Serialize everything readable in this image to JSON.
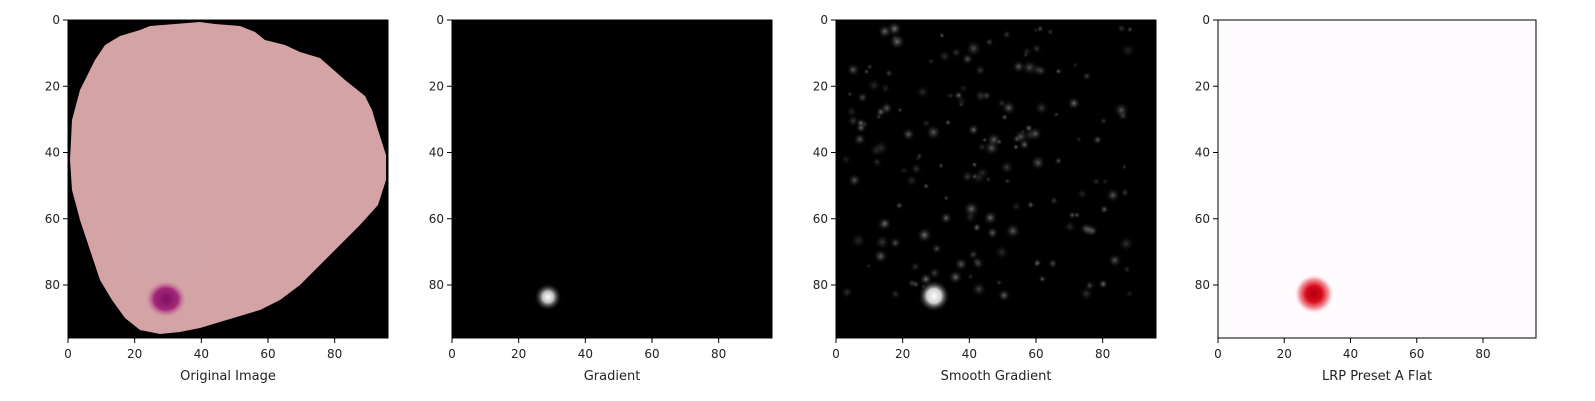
{
  "panels": [
    {
      "xlabel": "Original Image",
      "type": "original"
    },
    {
      "xlabel": "Gradient",
      "type": "gradient"
    },
    {
      "xlabel": "Smooth Gradient",
      "type": "smooth"
    },
    {
      "xlabel": "LRP Preset A Flat",
      "type": "lrp"
    }
  ],
  "axes": {
    "x_ticks": [
      0,
      20,
      40,
      60,
      80
    ],
    "y_ticks": [
      0,
      20,
      40,
      60,
      80
    ],
    "range": [
      0,
      96
    ]
  },
  "colors": {
    "cell": "#d4a3a6",
    "parasite": "#9a1a6e",
    "background_black": "#000000",
    "lrp_hot": "#c40010",
    "lrp_bg": "#fdfbfd"
  }
}
